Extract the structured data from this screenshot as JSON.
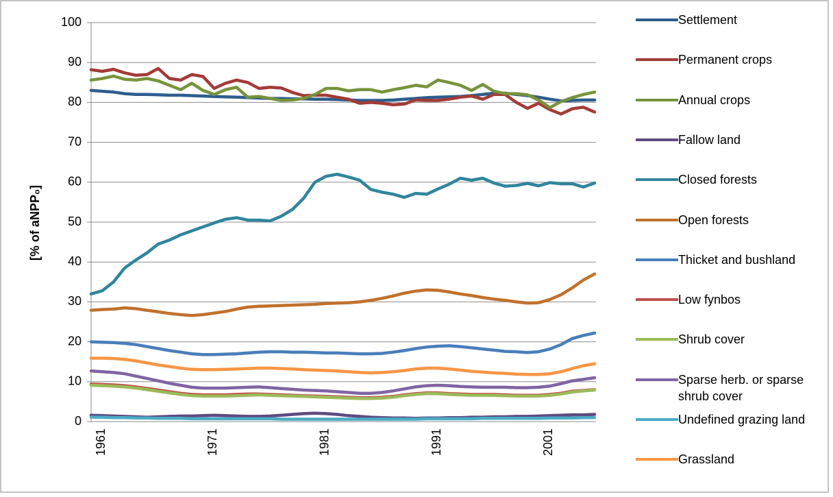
{
  "chart_data": {
    "type": "line",
    "y_label": "[% of aNPP₀]",
    "categories": [
      "1961",
      null,
      null,
      null,
      null,
      null,
      null,
      null,
      null,
      null,
      "1971",
      null,
      null,
      null,
      null,
      null,
      null,
      null,
      null,
      null,
      "1981",
      null,
      null,
      null,
      null,
      null,
      null,
      null,
      null,
      null,
      "1991",
      null,
      null,
      null,
      null,
      null,
      null,
      null,
      null,
      null,
      "2001",
      null,
      null,
      null,
      null,
      null
    ],
    "ylim": [
      0,
      100
    ],
    "yticks": [
      0,
      10,
      20,
      30,
      40,
      50,
      60,
      70,
      80,
      90,
      100
    ],
    "grid": true,
    "series": [
      {
        "name": "Settlement",
        "color": "#2f5d8e",
        "values": [
          83.0,
          82.8,
          82.6,
          82.2,
          82.0,
          82.0,
          81.9,
          81.8,
          81.8,
          81.7,
          81.6,
          81.5,
          81.4,
          81.3,
          81.2,
          81.1,
          81.0,
          81.0,
          80.9,
          80.9,
          80.8,
          80.8,
          80.7,
          80.6,
          80.5,
          80.5,
          80.5,
          80.6,
          80.8,
          81.0,
          81.2,
          81.3,
          81.4,
          81.5,
          81.7,
          82.0,
          82.3,
          82.3,
          82.0,
          81.7,
          81.3,
          80.8,
          80.4,
          80.5,
          80.6,
          80.6
        ]
      },
      {
        "name": "Permanent crops",
        "color": "#a33b37",
        "values": [
          88.2,
          87.8,
          88.3,
          87.4,
          86.8,
          87.0,
          88.5,
          86.0,
          85.6,
          87.0,
          86.5,
          83.5,
          84.8,
          85.6,
          85.0,
          83.5,
          83.8,
          83.6,
          82.5,
          81.7,
          81.8,
          81.8,
          81.3,
          80.8,
          79.8,
          80.0,
          79.8,
          79.4,
          79.6,
          80.6,
          80.5,
          80.5,
          80.8,
          81.3,
          81.6,
          80.8,
          82.0,
          82.0,
          80.0,
          78.5,
          79.8,
          78.2,
          77.1,
          78.4,
          78.8,
          77.6
        ]
      },
      {
        "name": "Annual crops",
        "color": "#77933c",
        "values": [
          85.6,
          86.0,
          86.6,
          85.8,
          85.6,
          86.0,
          85.4,
          84.3,
          83.2,
          84.8,
          83.0,
          82.0,
          83.2,
          83.8,
          81.3,
          81.5,
          81.0,
          80.5,
          80.6,
          81.0,
          82.0,
          83.5,
          83.5,
          82.9,
          83.2,
          83.2,
          82.6,
          83.2,
          83.7,
          84.3,
          83.9,
          85.6,
          85.0,
          84.3,
          83.0,
          84.5,
          82.8,
          82.2,
          82.2,
          81.9,
          80.6,
          78.7,
          80.2,
          81.2,
          82.0,
          82.6
        ]
      },
      {
        "name": "Fallow land",
        "color": "#5f4b80",
        "values": [
          1.6,
          1.5,
          1.4,
          1.3,
          1.2,
          1.1,
          1.2,
          1.3,
          1.4,
          1.4,
          1.5,
          1.6,
          1.5,
          1.4,
          1.3,
          1.3,
          1.4,
          1.6,
          1.8,
          2.0,
          2.1,
          2.0,
          1.8,
          1.5,
          1.3,
          1.1,
          1.0,
          0.9,
          0.9,
          0.8,
          0.9,
          0.9,
          1.0,
          1.0,
          1.1,
          1.1,
          1.2,
          1.2,
          1.3,
          1.3,
          1.4,
          1.5,
          1.6,
          1.7,
          1.7,
          1.8
        ]
      },
      {
        "name": "Closed forests",
        "color": "#31859c",
        "values": [
          32.0,
          32.8,
          35.0,
          38.5,
          40.5,
          42.3,
          44.5,
          45.5,
          46.8,
          47.8,
          48.8,
          49.8,
          50.7,
          51.1,
          50.5,
          50.5,
          50.3,
          51.5,
          53.2,
          56.0,
          60.0,
          61.5,
          62.0,
          61.3,
          60.5,
          58.2,
          57.5,
          57.0,
          56.2,
          57.2,
          57.0,
          58.3,
          59.5,
          61.0,
          60.5,
          61.0,
          59.8,
          59.0,
          59.2,
          59.7,
          59.1,
          59.9,
          59.6,
          59.6,
          58.8,
          59.8
        ]
      },
      {
        "name": "Open forests",
        "color": "#c0712c",
        "values": [
          27.9,
          28.1,
          28.2,
          28.5,
          28.3,
          27.9,
          27.5,
          27.1,
          26.8,
          26.6,
          26.8,
          27.2,
          27.6,
          28.2,
          28.7,
          28.9,
          29.0,
          29.1,
          29.2,
          29.3,
          29.4,
          29.6,
          29.7,
          29.8,
          30.0,
          30.4,
          30.9,
          31.5,
          32.2,
          32.7,
          33.0,
          32.9,
          32.5,
          32.0,
          31.6,
          31.1,
          30.7,
          30.4,
          30.0,
          29.7,
          29.8,
          30.6,
          31.8,
          33.5,
          35.5,
          37.0
        ]
      },
      {
        "name": "Thicket and bushland",
        "color": "#4a7ebb",
        "values": [
          20.0,
          19.9,
          19.8,
          19.6,
          19.3,
          18.8,
          18.3,
          17.8,
          17.4,
          17.0,
          16.8,
          16.8,
          16.9,
          17.0,
          17.2,
          17.4,
          17.5,
          17.5,
          17.4,
          17.4,
          17.3,
          17.2,
          17.2,
          17.1,
          17.0,
          17.0,
          17.1,
          17.4,
          17.8,
          18.3,
          18.7,
          18.9,
          19.0,
          18.8,
          18.5,
          18.2,
          17.9,
          17.6,
          17.5,
          17.3,
          17.5,
          18.2,
          19.3,
          20.8,
          21.6,
          22.2
        ]
      },
      {
        "name": "Low fynbos",
        "color": "#c0504d",
        "values": [
          9.4,
          9.3,
          9.2,
          9.0,
          8.7,
          8.3,
          7.9,
          7.5,
          7.1,
          6.8,
          6.7,
          6.7,
          6.7,
          6.8,
          6.9,
          6.9,
          6.8,
          6.7,
          6.6,
          6.5,
          6.4,
          6.3,
          6.2,
          6.1,
          6.0,
          6.0,
          6.1,
          6.3,
          6.7,
          7.0,
          7.2,
          7.2,
          7.0,
          6.9,
          6.8,
          6.8,
          6.8,
          6.7,
          6.6,
          6.6,
          6.6,
          6.8,
          7.1,
          7.6,
          7.8,
          8.0
        ]
      },
      {
        "name": "Shrub cover",
        "color": "#9bbb59",
        "values": [
          9.1,
          9.0,
          8.9,
          8.7,
          8.4,
          8.0,
          7.6,
          7.2,
          6.8,
          6.5,
          6.4,
          6.4,
          6.4,
          6.5,
          6.6,
          6.7,
          6.6,
          6.5,
          6.4,
          6.3,
          6.2,
          6.1,
          6.0,
          5.9,
          5.8,
          5.8,
          5.9,
          6.1,
          6.5,
          6.8,
          7.0,
          7.0,
          6.8,
          6.7,
          6.6,
          6.6,
          6.6,
          6.5,
          6.4,
          6.4,
          6.4,
          6.6,
          6.9,
          7.4,
          7.7,
          7.9
        ]
      },
      {
        "name": "Sparse herb. or sparse shrub cover",
        "color": "#8064a2",
        "values": [
          12.7,
          12.5,
          12.3,
          12.0,
          11.4,
          10.8,
          10.2,
          9.6,
          9.1,
          8.6,
          8.4,
          8.4,
          8.4,
          8.5,
          8.6,
          8.7,
          8.5,
          8.3,
          8.1,
          7.9,
          7.8,
          7.7,
          7.5,
          7.3,
          7.1,
          7.1,
          7.3,
          7.7,
          8.2,
          8.7,
          9.0,
          9.1,
          9.0,
          8.8,
          8.7,
          8.6,
          8.6,
          8.6,
          8.5,
          8.5,
          8.6,
          8.9,
          9.5,
          10.2,
          10.6,
          11.0
        ]
      },
      {
        "name": "Undefined grazing land",
        "color": "#4bacc6",
        "values": [
          1.1,
          1.1,
          1.0,
          1.0,
          0.9,
          0.9,
          0.8,
          0.8,
          0.8,
          0.7,
          0.7,
          0.7,
          0.7,
          0.7,
          0.7,
          0.7,
          0.7,
          0.6,
          0.6,
          0.6,
          0.6,
          0.6,
          0.6,
          0.6,
          0.6,
          0.6,
          0.6,
          0.6,
          0.6,
          0.6,
          0.7,
          0.7,
          0.7,
          0.7,
          0.7,
          0.8,
          0.8,
          0.8,
          0.8,
          0.8,
          0.8,
          0.9,
          0.9,
          0.9,
          1.0,
          1.0
        ]
      },
      {
        "name": "Grassland",
        "color": "#f79646",
        "values": [
          15.9,
          15.9,
          15.8,
          15.6,
          15.2,
          14.7,
          14.2,
          13.8,
          13.4,
          13.1,
          13.0,
          13.0,
          13.1,
          13.2,
          13.3,
          13.4,
          13.4,
          13.3,
          13.2,
          13.0,
          12.9,
          12.8,
          12.7,
          12.5,
          12.3,
          12.2,
          12.3,
          12.5,
          12.8,
          13.2,
          13.4,
          13.4,
          13.2,
          12.9,
          12.6,
          12.4,
          12.2,
          12.1,
          11.9,
          11.8,
          11.8,
          12.0,
          12.5,
          13.3,
          14.0,
          14.5
        ]
      }
    ]
  }
}
